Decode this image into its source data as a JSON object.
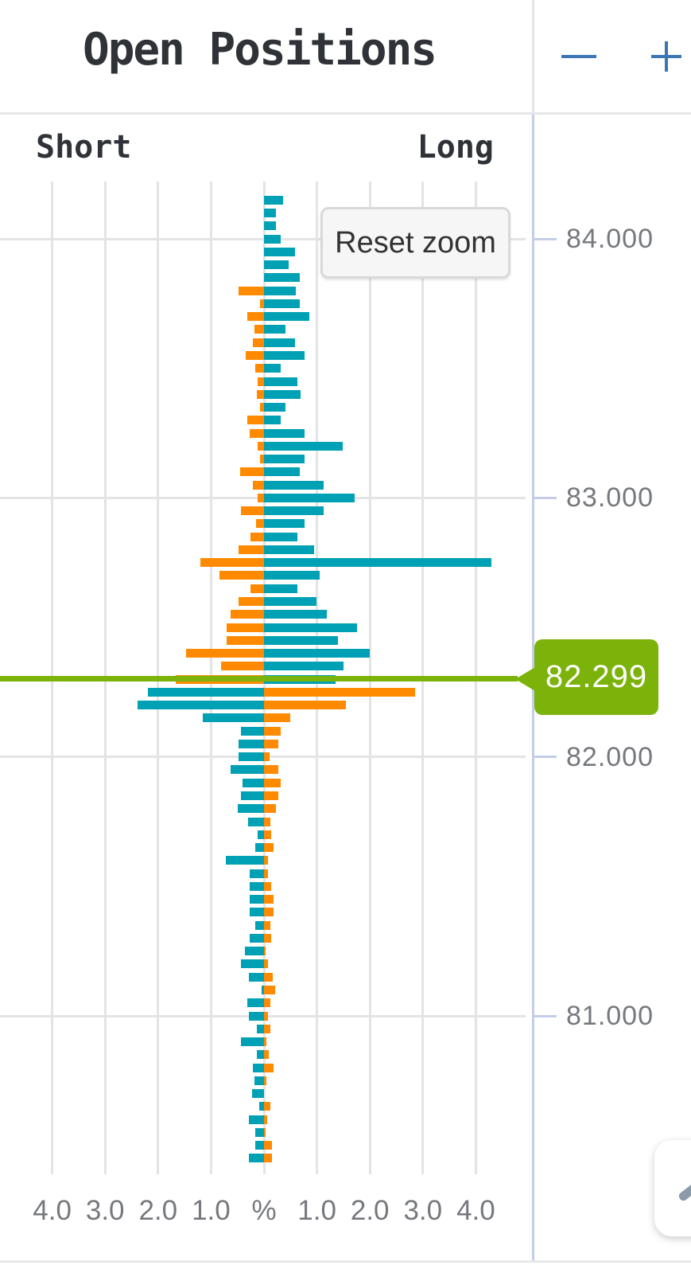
{
  "header": {
    "title": "Open Positions"
  },
  "toolbar": {
    "zoom_out_label": "Zoom out",
    "zoom_in_label": "Zoom in"
  },
  "chart": {
    "short_header": "Short",
    "long_header": "Long",
    "reset_zoom_label": "Reset zoom",
    "current_price_label": "82.299",
    "x_axis_labels": [
      "4.0",
      "3.0",
      "2.0",
      "1.0",
      "%",
      "1.0",
      "2.0",
      "3.0",
      "4.0"
    ],
    "y_axis_labels": [
      "84.000",
      "83.000",
      "82.000",
      "81.000"
    ],
    "colors": {
      "short": "#FF8A00",
      "long": "#00A1B5",
      "current_price": "#7CB30A",
      "axis_line": "#C3CDE7",
      "gridline": "#E4E4E6",
      "control_icon_blue": "#3A76B4",
      "label_gray": "#75787D"
    }
  },
  "chart_data": {
    "type": "bar",
    "subtype": "bidirectional-horizontal-open-positions",
    "title": "Open Positions",
    "unit": "%",
    "x_range_pct": [
      -4.9,
      4.9
    ],
    "grid_step_pct": 1.0,
    "y_axis_prices": [
      84.0,
      83.0,
      82.0,
      81.0
    ],
    "current_price": 82.299,
    "price_step": 0.05,
    "legend": "Above current price: Short drawn left / Long drawn right. Below current price: Long drawn left / Short drawn right.",
    "prices": [
      84.15,
      84.1,
      84.05,
      84.0,
      83.95,
      83.9,
      83.85,
      83.8,
      83.75,
      83.7,
      83.65,
      83.6,
      83.55,
      83.5,
      83.45,
      83.4,
      83.35,
      83.3,
      83.25,
      83.2,
      83.15,
      83.1,
      83.05,
      83.0,
      82.95,
      82.9,
      82.85,
      82.8,
      82.75,
      82.7,
      82.65,
      82.6,
      82.55,
      82.5,
      82.45,
      82.4,
      82.35,
      82.3,
      82.25,
      82.2,
      82.15,
      82.1,
      82.05,
      82.0,
      81.95,
      81.9,
      81.85,
      81.8,
      81.75,
      81.7,
      81.65,
      81.6,
      81.55,
      81.5,
      81.45,
      81.4,
      81.35,
      81.3,
      81.25,
      81.2,
      81.15,
      81.1,
      81.05,
      81.0,
      80.95,
      80.9,
      80.85,
      80.8,
      80.75,
      80.7,
      80.65,
      80.6,
      80.55,
      80.5,
      80.45
    ],
    "series": [
      {
        "name": "Short",
        "color": "#FF8A00",
        "values": [
          0,
          0,
          0,
          0,
          0,
          0,
          0,
          0.48,
          0.08,
          0.32,
          0.18,
          0.21,
          0.35,
          0.17,
          0.12,
          0.13,
          0.07,
          0.31,
          0.27,
          0.12,
          0.07,
          0.45,
          0.21,
          0.12,
          0.43,
          0.15,
          0.26,
          0.48,
          1.2,
          0.84,
          0.26,
          0.48,
          0.63,
          0.71,
          0.71,
          1.47,
          0.81,
          1.66,
          2.85,
          1.55,
          0.5,
          0.32,
          0.27,
          0.11,
          0.27,
          0.32,
          0.27,
          0.23,
          0.12,
          0.13,
          0.18,
          0.08,
          0.08,
          0.13,
          0.18,
          0.18,
          0.12,
          0.13,
          0.03,
          0.07,
          0.17,
          0.21,
          0.12,
          0.08,
          0.12,
          0.04,
          0.09,
          0.18,
          0.04,
          0,
          0.12,
          0.06,
          0.03,
          0.15,
          0.15
        ]
      },
      {
        "name": "Long",
        "color": "#00A1B5",
        "values": [
          0.36,
          0.22,
          0.22,
          0.32,
          0.59,
          0.46,
          0.67,
          0.6,
          0.67,
          0.86,
          0.4,
          0.59,
          0.76,
          0.31,
          0.63,
          0.69,
          0.4,
          0.31,
          0.76,
          1.49,
          0.76,
          0.68,
          1.13,
          1.71,
          1.13,
          0.77,
          0.63,
          0.95,
          4.29,
          1.05,
          0.63,
          0.99,
          1.18,
          1.76,
          1.4,
          1.99,
          1.5,
          1.35,
          2.19,
          2.38,
          1.15,
          0.43,
          0.48,
          0.48,
          0.63,
          0.4,
          0.43,
          0.49,
          0.3,
          0.12,
          0.17,
          0.72,
          0.27,
          0.27,
          0.27,
          0.27,
          0.17,
          0.27,
          0.36,
          0.43,
          0.28,
          0.04,
          0.31,
          0.28,
          0.14,
          0.44,
          0.14,
          0.21,
          0.18,
          0.22,
          0.09,
          0.29,
          0.16,
          0.16,
          0.29
        ]
      }
    ]
  }
}
